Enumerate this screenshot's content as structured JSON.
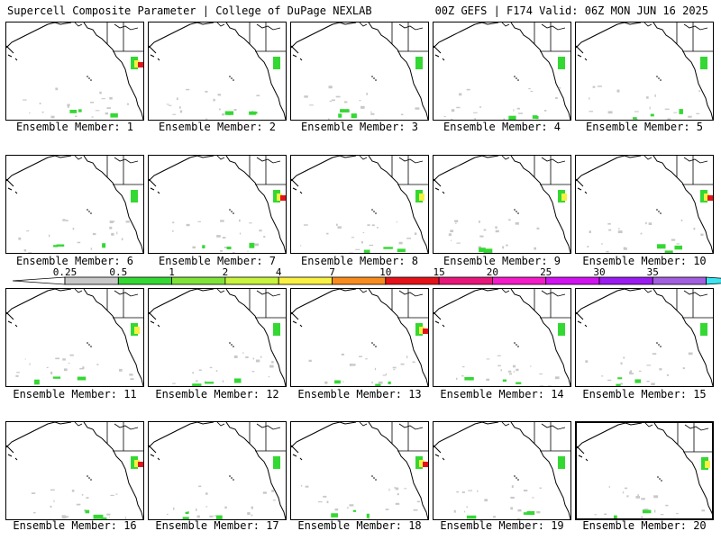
{
  "header": {
    "title": "Supercell Composite Parameter | College of DuPage NEXLAB",
    "model_info": "00Z GEFS | F174 Valid: 06Z MON JUN 16 2025"
  },
  "member_caption_prefix": "Ensemble Member:",
  "members": [
    {
      "id": "1",
      "hot": 2
    },
    {
      "id": "2",
      "hot": 0
    },
    {
      "id": "3",
      "hot": 0
    },
    {
      "id": "4",
      "hot": 0
    },
    {
      "id": "5",
      "hot": 0
    },
    {
      "id": "6",
      "hot": 0
    },
    {
      "id": "7",
      "hot": 2
    },
    {
      "id": "8",
      "hot": 1
    },
    {
      "id": "9",
      "hot": 1
    },
    {
      "id": "10",
      "hot": 2
    },
    {
      "id": "11",
      "hot": 1
    },
    {
      "id": "12",
      "hot": 0
    },
    {
      "id": "13",
      "hot": 2
    },
    {
      "id": "14",
      "hot": 0
    },
    {
      "id": "15",
      "hot": 0
    },
    {
      "id": "16",
      "hot": 2
    },
    {
      "id": "17",
      "hot": 0
    },
    {
      "id": "18",
      "hot": 2
    },
    {
      "id": "19",
      "hot": 0
    },
    {
      "id": "20",
      "hot": 1
    }
  ],
  "colorbar": {
    "labels": [
      "0.25",
      "0.5",
      "1",
      "2",
      "4",
      "7",
      "10",
      "15",
      "20",
      "25",
      "30",
      "35"
    ],
    "colors": [
      "#c8c8c8",
      "#34d833",
      "#7fe33a",
      "#c8f33e",
      "#f8f043",
      "#f88b1e",
      "#e4131a",
      "#e8177a",
      "#f31cc8",
      "#d113f2",
      "#9b1cf0",
      "#a25fe0",
      "#3ce4f0"
    ]
  },
  "colors": {
    "state_lines": "#000000",
    "low_scp": "#c8c8c8",
    "mid_scp": "#34d833",
    "high_scp": "#e4131a"
  }
}
